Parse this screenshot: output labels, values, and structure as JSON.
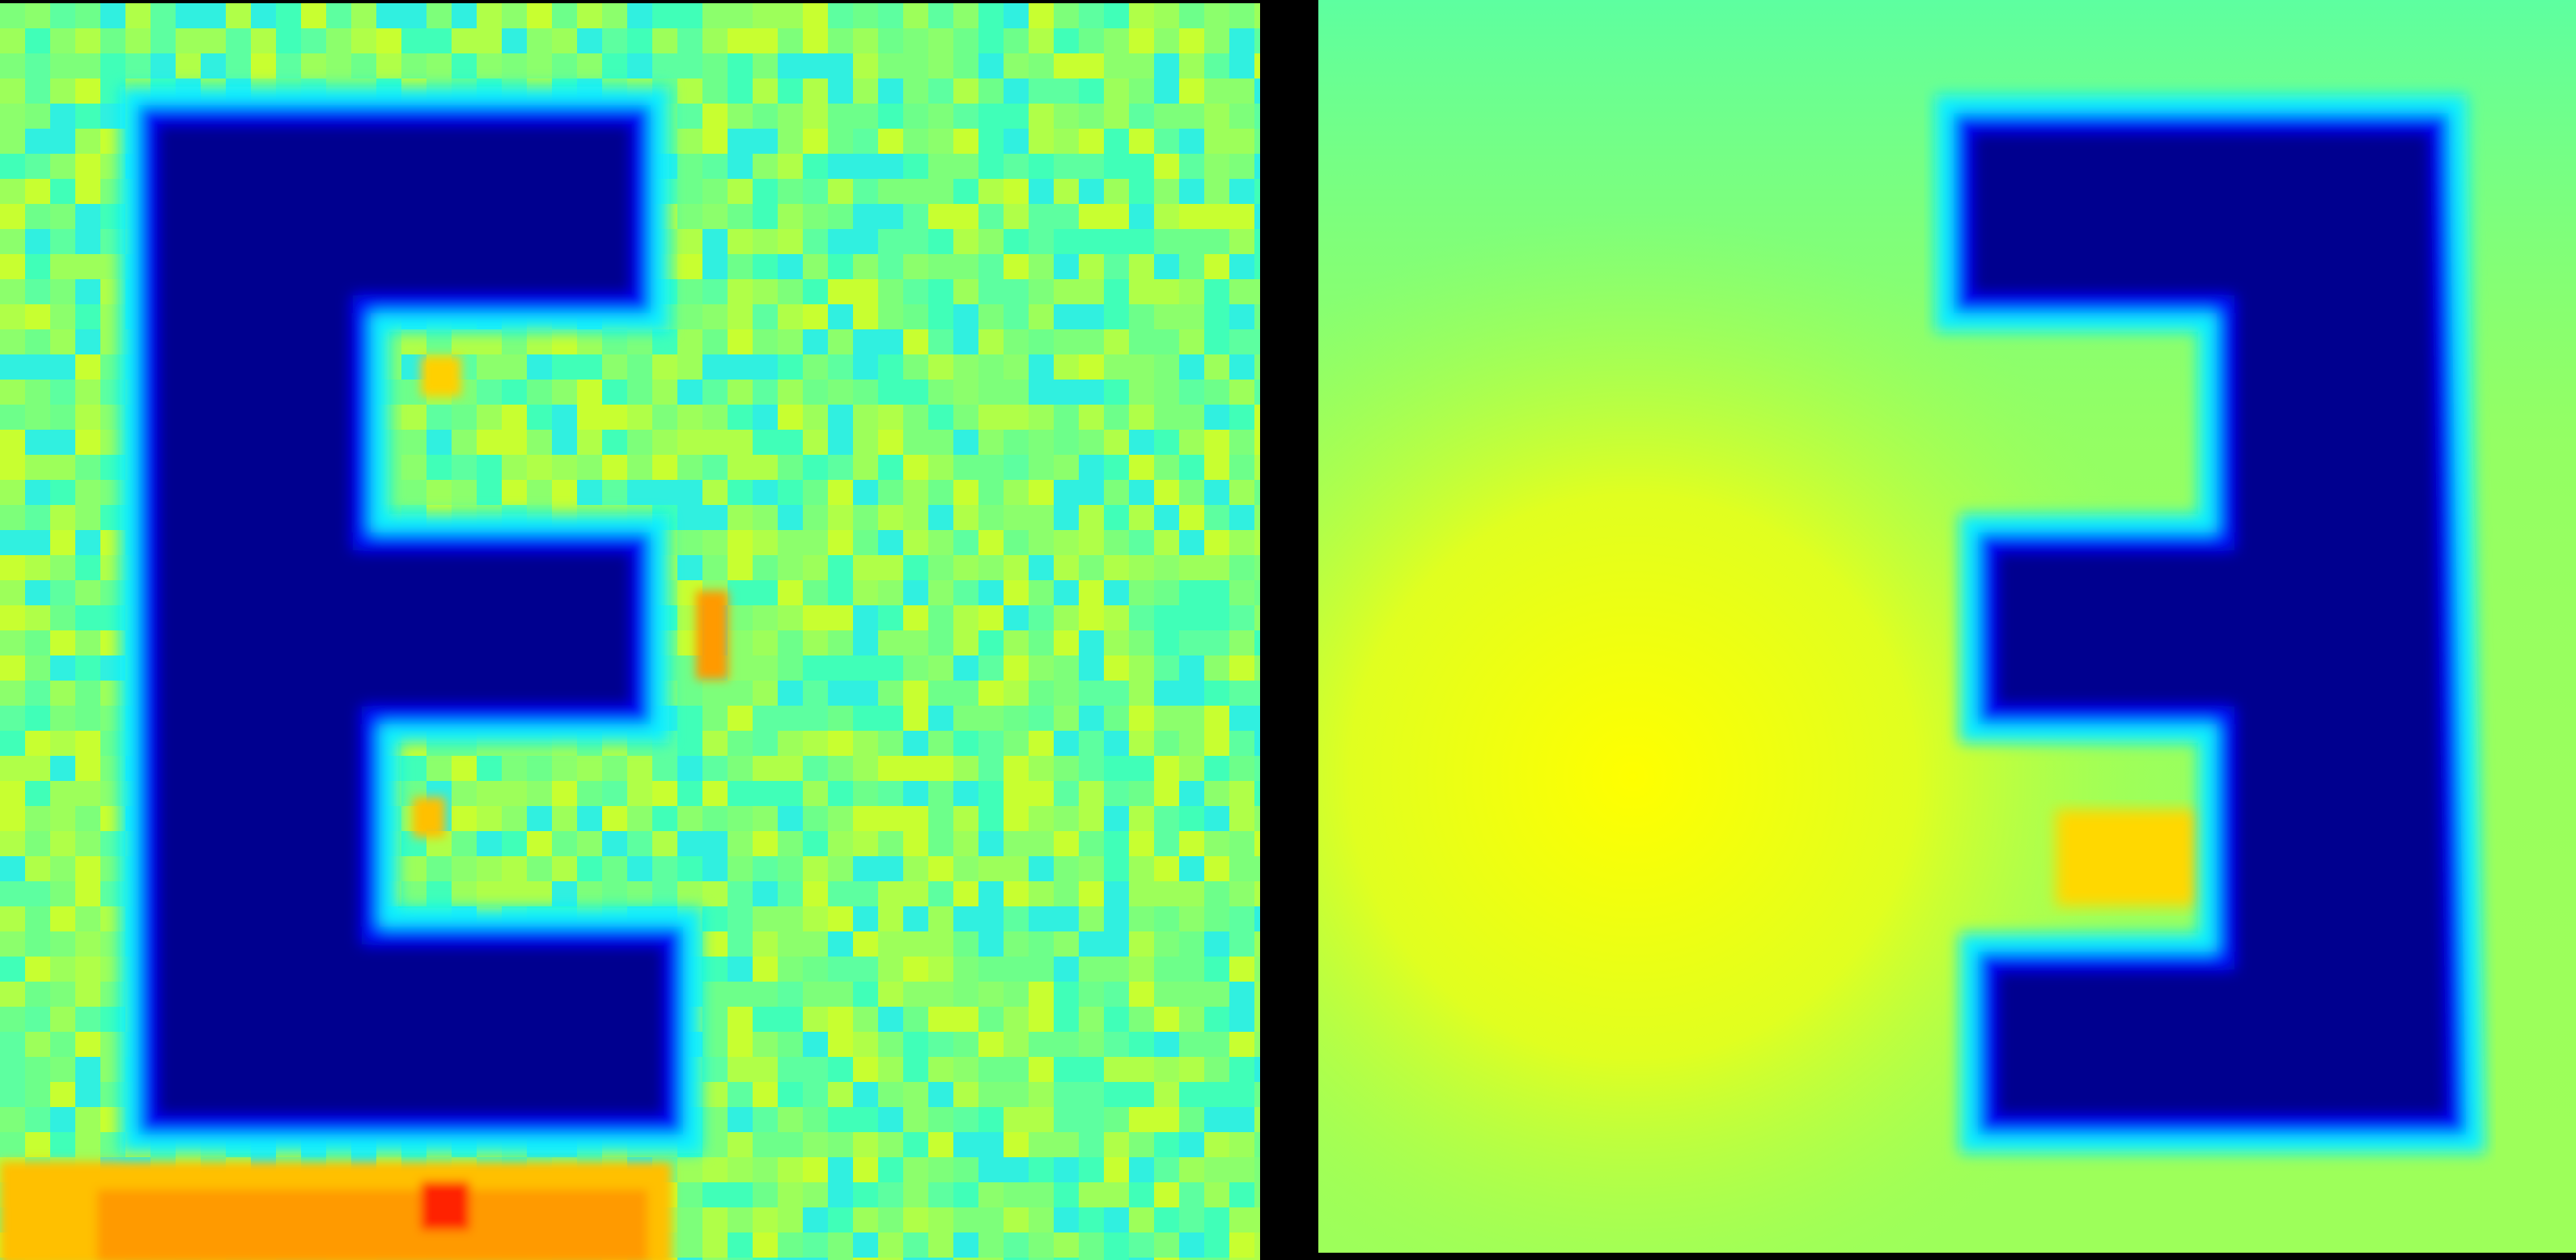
{
  "colormap": "jet",
  "colors": {
    "background": "#000000",
    "navy": "#00008f",
    "blue": "#0010ff",
    "cyan": "#10f0ff",
    "field_left": "#7dff7a",
    "field_right": "#9dff5a",
    "yellow": "#ffff00",
    "orange": "#ff9a00",
    "red": "#ff2000"
  },
  "panels": [
    {
      "letter_shape": "E",
      "orientation": "normal"
    },
    {
      "letter_shape": "E",
      "orientation": "mirrored"
    }
  ]
}
